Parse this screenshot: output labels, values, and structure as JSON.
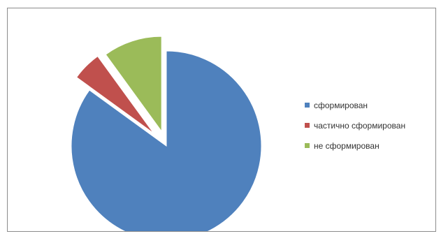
{
  "chart_data": {
    "type": "pie",
    "title": "",
    "exploded": true,
    "legend_position": "right",
    "slices": [
      {
        "label": "сформирован",
        "value": 85,
        "color": "#4f81bd"
      },
      {
        "label": "частично сформирован",
        "value": 5,
        "color": "#c0504d"
      },
      {
        "label": "не сформирован",
        "value": 10,
        "color": "#9bbb59"
      }
    ]
  },
  "legend": {
    "items": [
      {
        "label": "сформирован",
        "color": "#4f81bd"
      },
      {
        "label": "частично сформирован",
        "color": "#c0504d"
      },
      {
        "label": "не сформирован",
        "color": "#9bbb59"
      }
    ]
  }
}
